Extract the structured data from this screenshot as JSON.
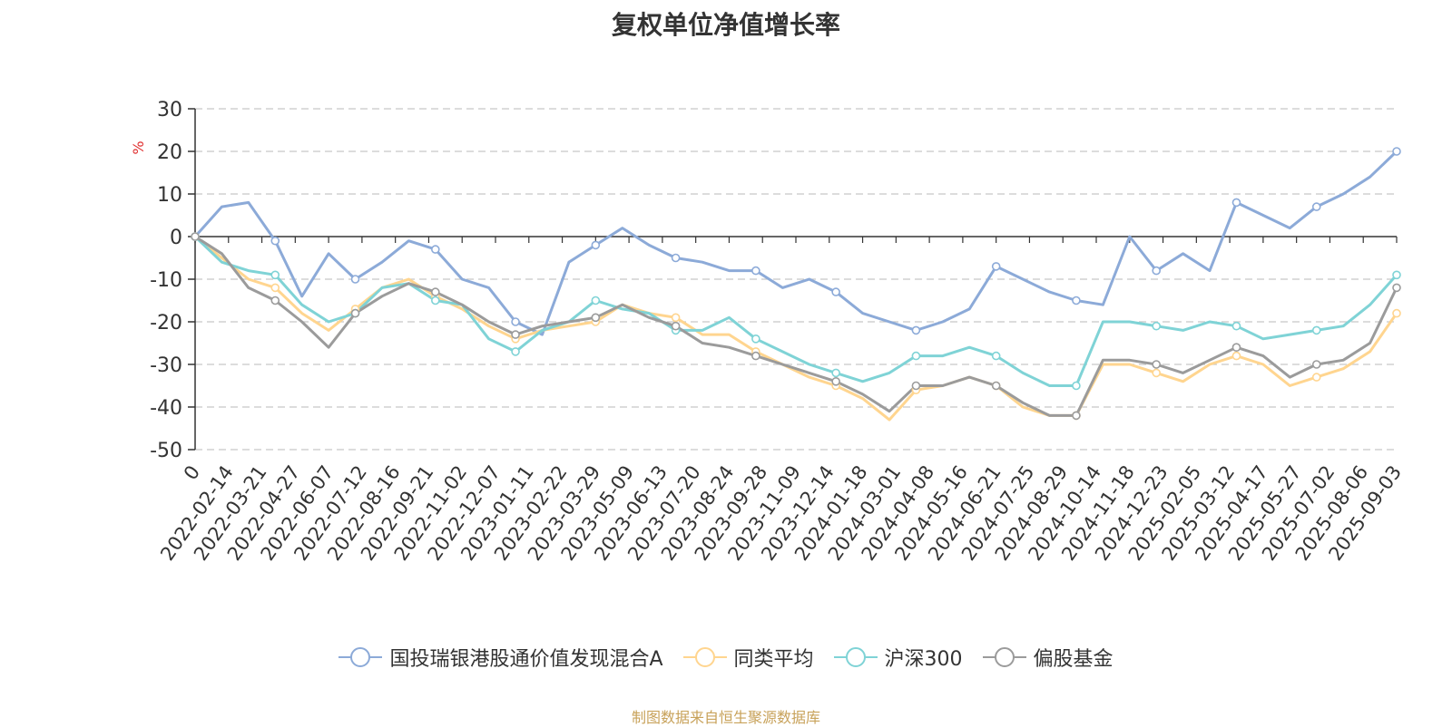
{
  "chart_data": {
    "type": "line",
    "title": "复权单位净值增长率",
    "ylabel": "%",
    "xlabel": "",
    "ylim": [
      -50,
      30
    ],
    "yticks": [
      30,
      20,
      10,
      0,
      -10,
      -20,
      -30,
      -40,
      -50
    ],
    "grid": true,
    "legend_position": "bottom",
    "x_tick_labels": [
      "0",
      "2022-02-14",
      "2022-03-21",
      "2022-04-27",
      "2022-06-07",
      "2022-07-12",
      "2022-08-16",
      "2022-09-21",
      "2022-11-02",
      "2022-12-07",
      "2023-01-11",
      "2023-02-22",
      "2023-03-29",
      "2023-05-09",
      "2023-06-13",
      "2023-07-20",
      "2023-08-24",
      "2023-09-28",
      "2023-11-09",
      "2023-12-14",
      "2024-01-18",
      "2024-03-01",
      "2024-04-08",
      "2024-05-16",
      "2024-06-21",
      "2024-07-25",
      "2024-08-29",
      "2024-10-14",
      "2024-11-18",
      "2024-12-23",
      "2025-02-05",
      "2025-03-12",
      "2025-04-17",
      "2025-05-27",
      "2025-07-02",
      "2025-08-06",
      "2025-09-03"
    ],
    "series": [
      {
        "name": "国投瑞银港股通价值发现混合A",
        "color": "#8caad8",
        "values": [
          0,
          7,
          8,
          -1,
          -14,
          -4,
          -10,
          -6,
          -1,
          -3,
          -10,
          -12,
          -20,
          -23,
          -6,
          -2,
          2,
          -2,
          -5,
          -6,
          -8,
          -8,
          -12,
          -10,
          -13,
          -18,
          -20,
          -22,
          -20,
          -17,
          -7,
          -10,
          -13,
          -15,
          -16,
          0,
          -8,
          -4,
          -8,
          8,
          5,
          2,
          7,
          10,
          14,
          20
        ]
      },
      {
        "name": "同类平均",
        "color": "#ffd58f",
        "values": [
          0,
          -5,
          -10,
          -12,
          -18,
          -22,
          -17,
          -12,
          -10,
          -14,
          -17,
          -21,
          -24,
          -22,
          -21,
          -20,
          -16,
          -18,
          -19,
          -23,
          -23,
          -27,
          -30,
          -33,
          -35,
          -38,
          -43,
          -36,
          -35,
          -33,
          -35,
          -40,
          -42,
          -42,
          -30,
          -30,
          -32,
          -34,
          -30,
          -28,
          -30,
          -35,
          -33,
          -31,
          -27,
          -18
        ]
      },
      {
        "name": "沪深300",
        "color": "#7fd3d6",
        "values": [
          0,
          -6,
          -8,
          -9,
          -16,
          -20,
          -18,
          -12,
          -11,
          -15,
          -16,
          -24,
          -27,
          -22,
          -20,
          -15,
          -17,
          -18,
          -22,
          -22,
          -19,
          -24,
          -27,
          -30,
          -32,
          -34,
          -32,
          -28,
          -28,
          -26,
          -28,
          -32,
          -35,
          -35,
          -20,
          -20,
          -21,
          -22,
          -20,
          -21,
          -24,
          -23,
          -22,
          -21,
          -16,
          -9
        ]
      },
      {
        "name": "偏股基金",
        "color": "#9b9b9b",
        "values": [
          0,
          -4,
          -12,
          -15,
          -20,
          -26,
          -18,
          -14,
          -11,
          -13,
          -16,
          -20,
          -23,
          -21,
          -20,
          -19,
          -16,
          -19,
          -21,
          -25,
          -26,
          -28,
          -30,
          -32,
          -34,
          -37,
          -41,
          -35,
          -35,
          -33,
          -35,
          -39,
          -42,
          -42,
          -29,
          -29,
          -30,
          -32,
          -29,
          -26,
          -28,
          -33,
          -30,
          -29,
          -25,
          -12
        ]
      }
    ]
  },
  "legend": {
    "items": [
      "国投瑞银港股通价值发现混合A",
      "同类平均",
      "沪深300",
      "偏股基金"
    ]
  },
  "footer": {
    "source": "制图数据来自恒生聚源数据库"
  }
}
